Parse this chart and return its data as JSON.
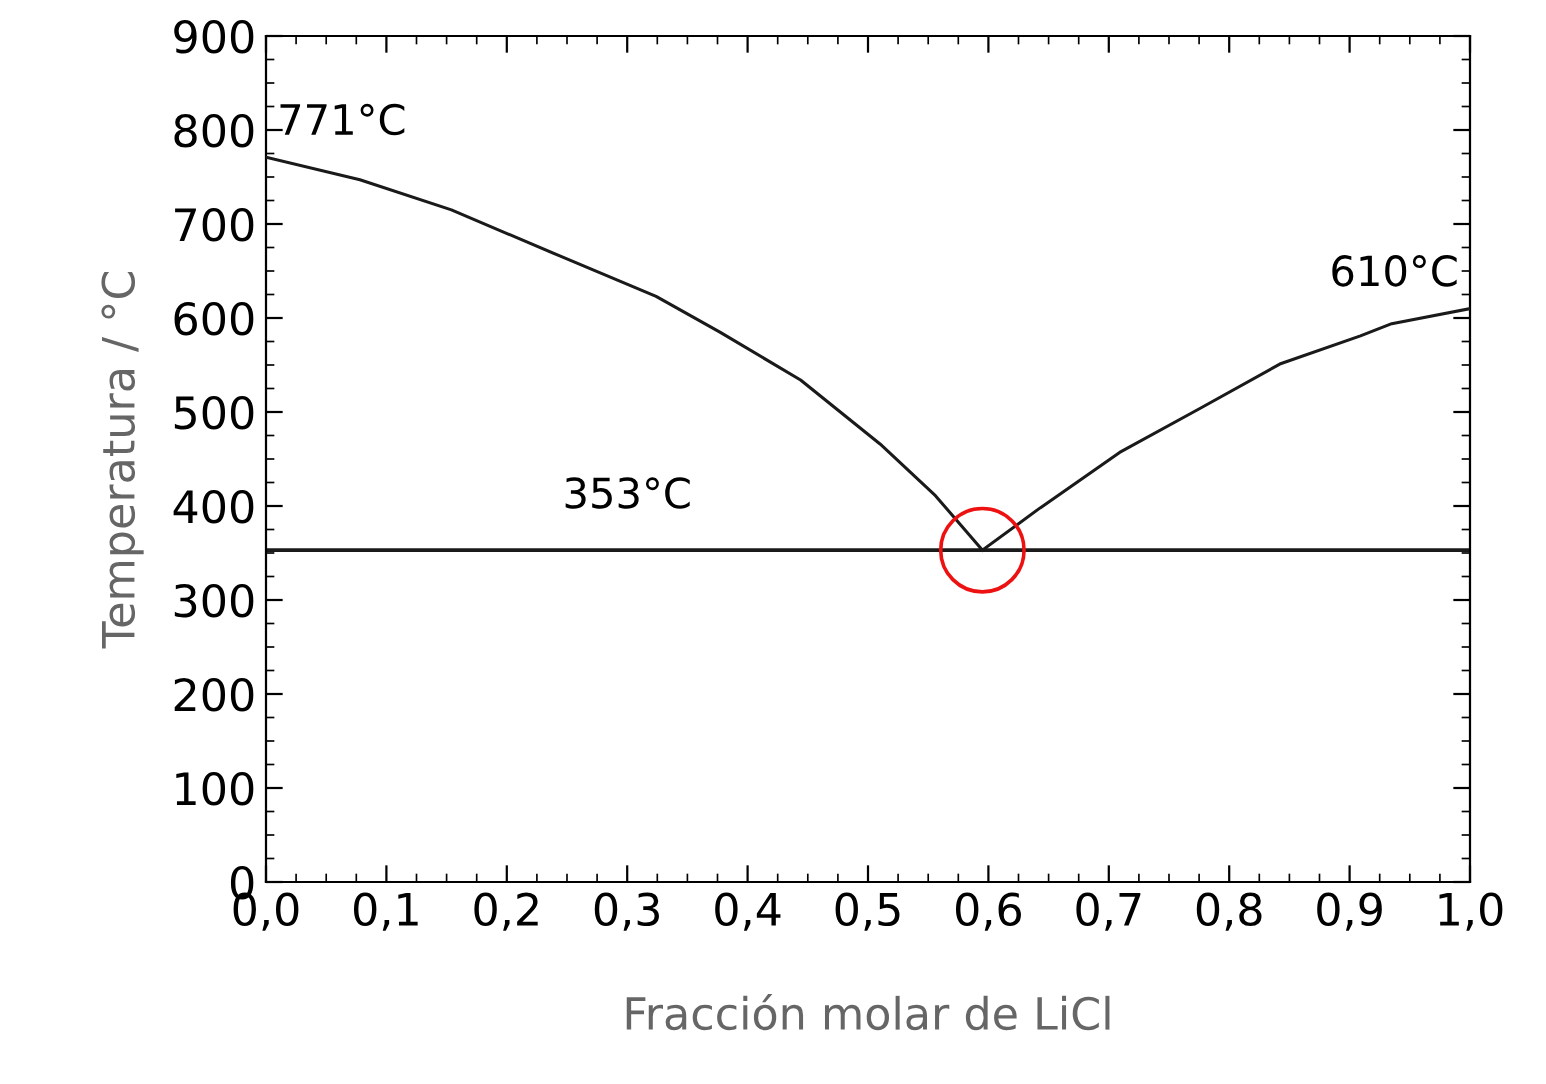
{
  "chart_data": {
    "type": "line",
    "xlabel": "Fracción molar de LiCl",
    "ylabel": "Temperatura / °C",
    "series": [
      {
        "color": "#1a1a1a",
        "x": [
          0,
          0.078,
          0.154,
          0.244,
          0.324,
          0.377,
          0.444,
          0.51,
          0.556,
          0.595
        ],
        "values": [
          771,
          747,
          715,
          666,
          623,
          585,
          534,
          466,
          411,
          353
        ]
      },
      {
        "color": "#1a1a1a",
        "x": [
          0.595,
          0.643,
          0.709,
          0.776,
          0.842,
          0.909,
          0.935,
          1.0
        ],
        "values": [
          353,
          398,
          457,
          504,
          551,
          581,
          594,
          610
        ]
      },
      {
        "type": "scatter",
        "color": "#ee1111",
        "marker": "circle",
        "x": [
          0.595
        ],
        "values": [
          353
        ]
      }
    ],
    "ref_lines": [
      {
        "axis": "y",
        "value": 353,
        "label": "353°C",
        "color": "#1a1a1a"
      }
    ],
    "annotations": [
      {
        "text": "771°C",
        "x": 0,
        "y": 771
      },
      {
        "text": "610°C",
        "x": 1.0,
        "y": 610
      }
    ],
    "xlim": [
      0,
      1
    ],
    "ylim": [
      0,
      900
    ],
    "xticks": [
      {
        "value": 0,
        "label": "0,0"
      },
      {
        "value": 0.1,
        "label": "0,1"
      },
      {
        "value": 0.2,
        "label": "0,2"
      },
      {
        "value": 0.3,
        "label": "0,3"
      },
      {
        "value": 0.4,
        "label": "0,4"
      },
      {
        "value": 0.5,
        "label": "0,5"
      },
      {
        "value": 0.6,
        "label": "0,6"
      },
      {
        "value": 0.7,
        "label": "0,7"
      },
      {
        "value": 0.8,
        "label": "0,8"
      },
      {
        "value": 0.9,
        "label": "0,9"
      },
      {
        "value": 1.0,
        "label": "1,0"
      }
    ],
    "yticks": [
      0,
      100,
      200,
      300,
      400,
      500,
      600,
      700,
      800,
      900
    ],
    "grid": false,
    "legend": false
  }
}
